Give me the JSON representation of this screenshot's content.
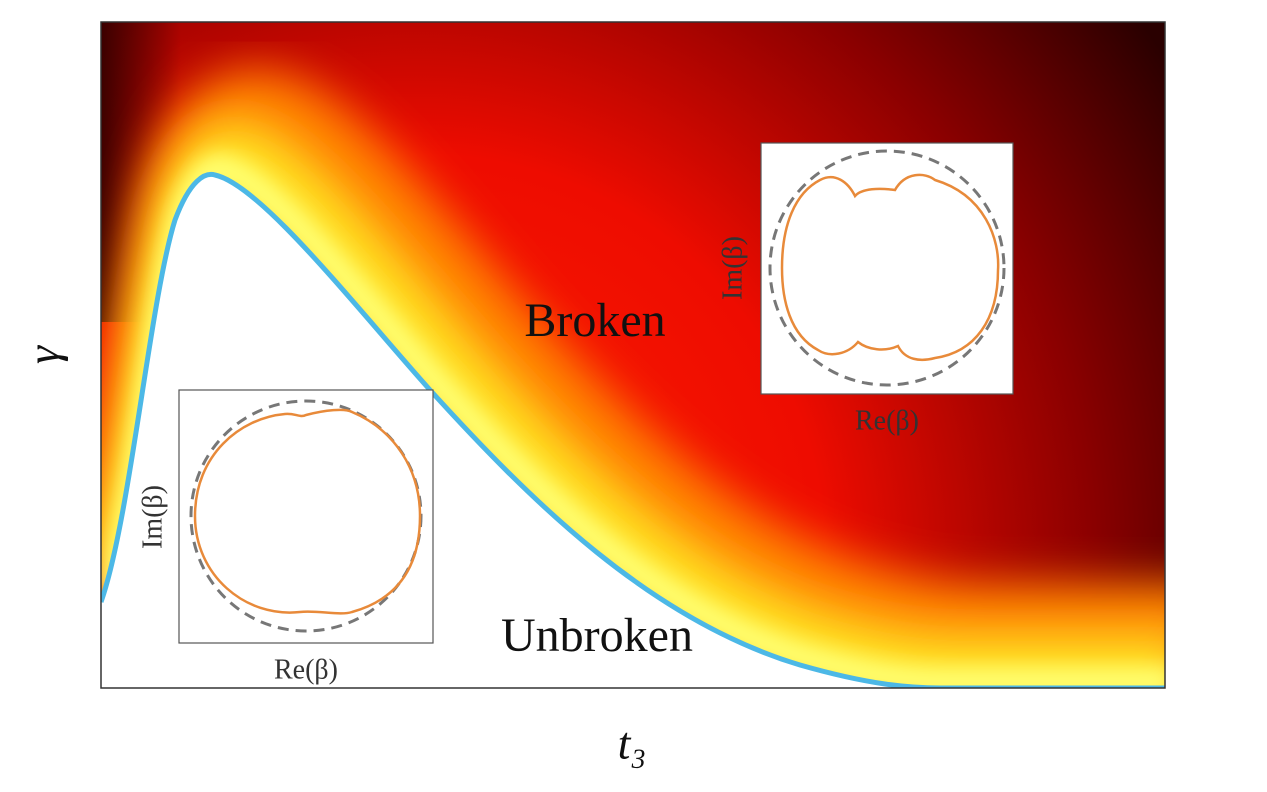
{
  "chart_data": {
    "type": "phase",
    "x_label": "t₃",
    "y_label": "γ",
    "annotations": [
      "Broken",
      "Unbroken"
    ],
    "insets": [
      {
        "x_label": "Re(β)",
        "y_label": "Im(β)"
      },
      {
        "x_label": "Re(β)",
        "y_label": "Im(β)"
      }
    ]
  }
}
